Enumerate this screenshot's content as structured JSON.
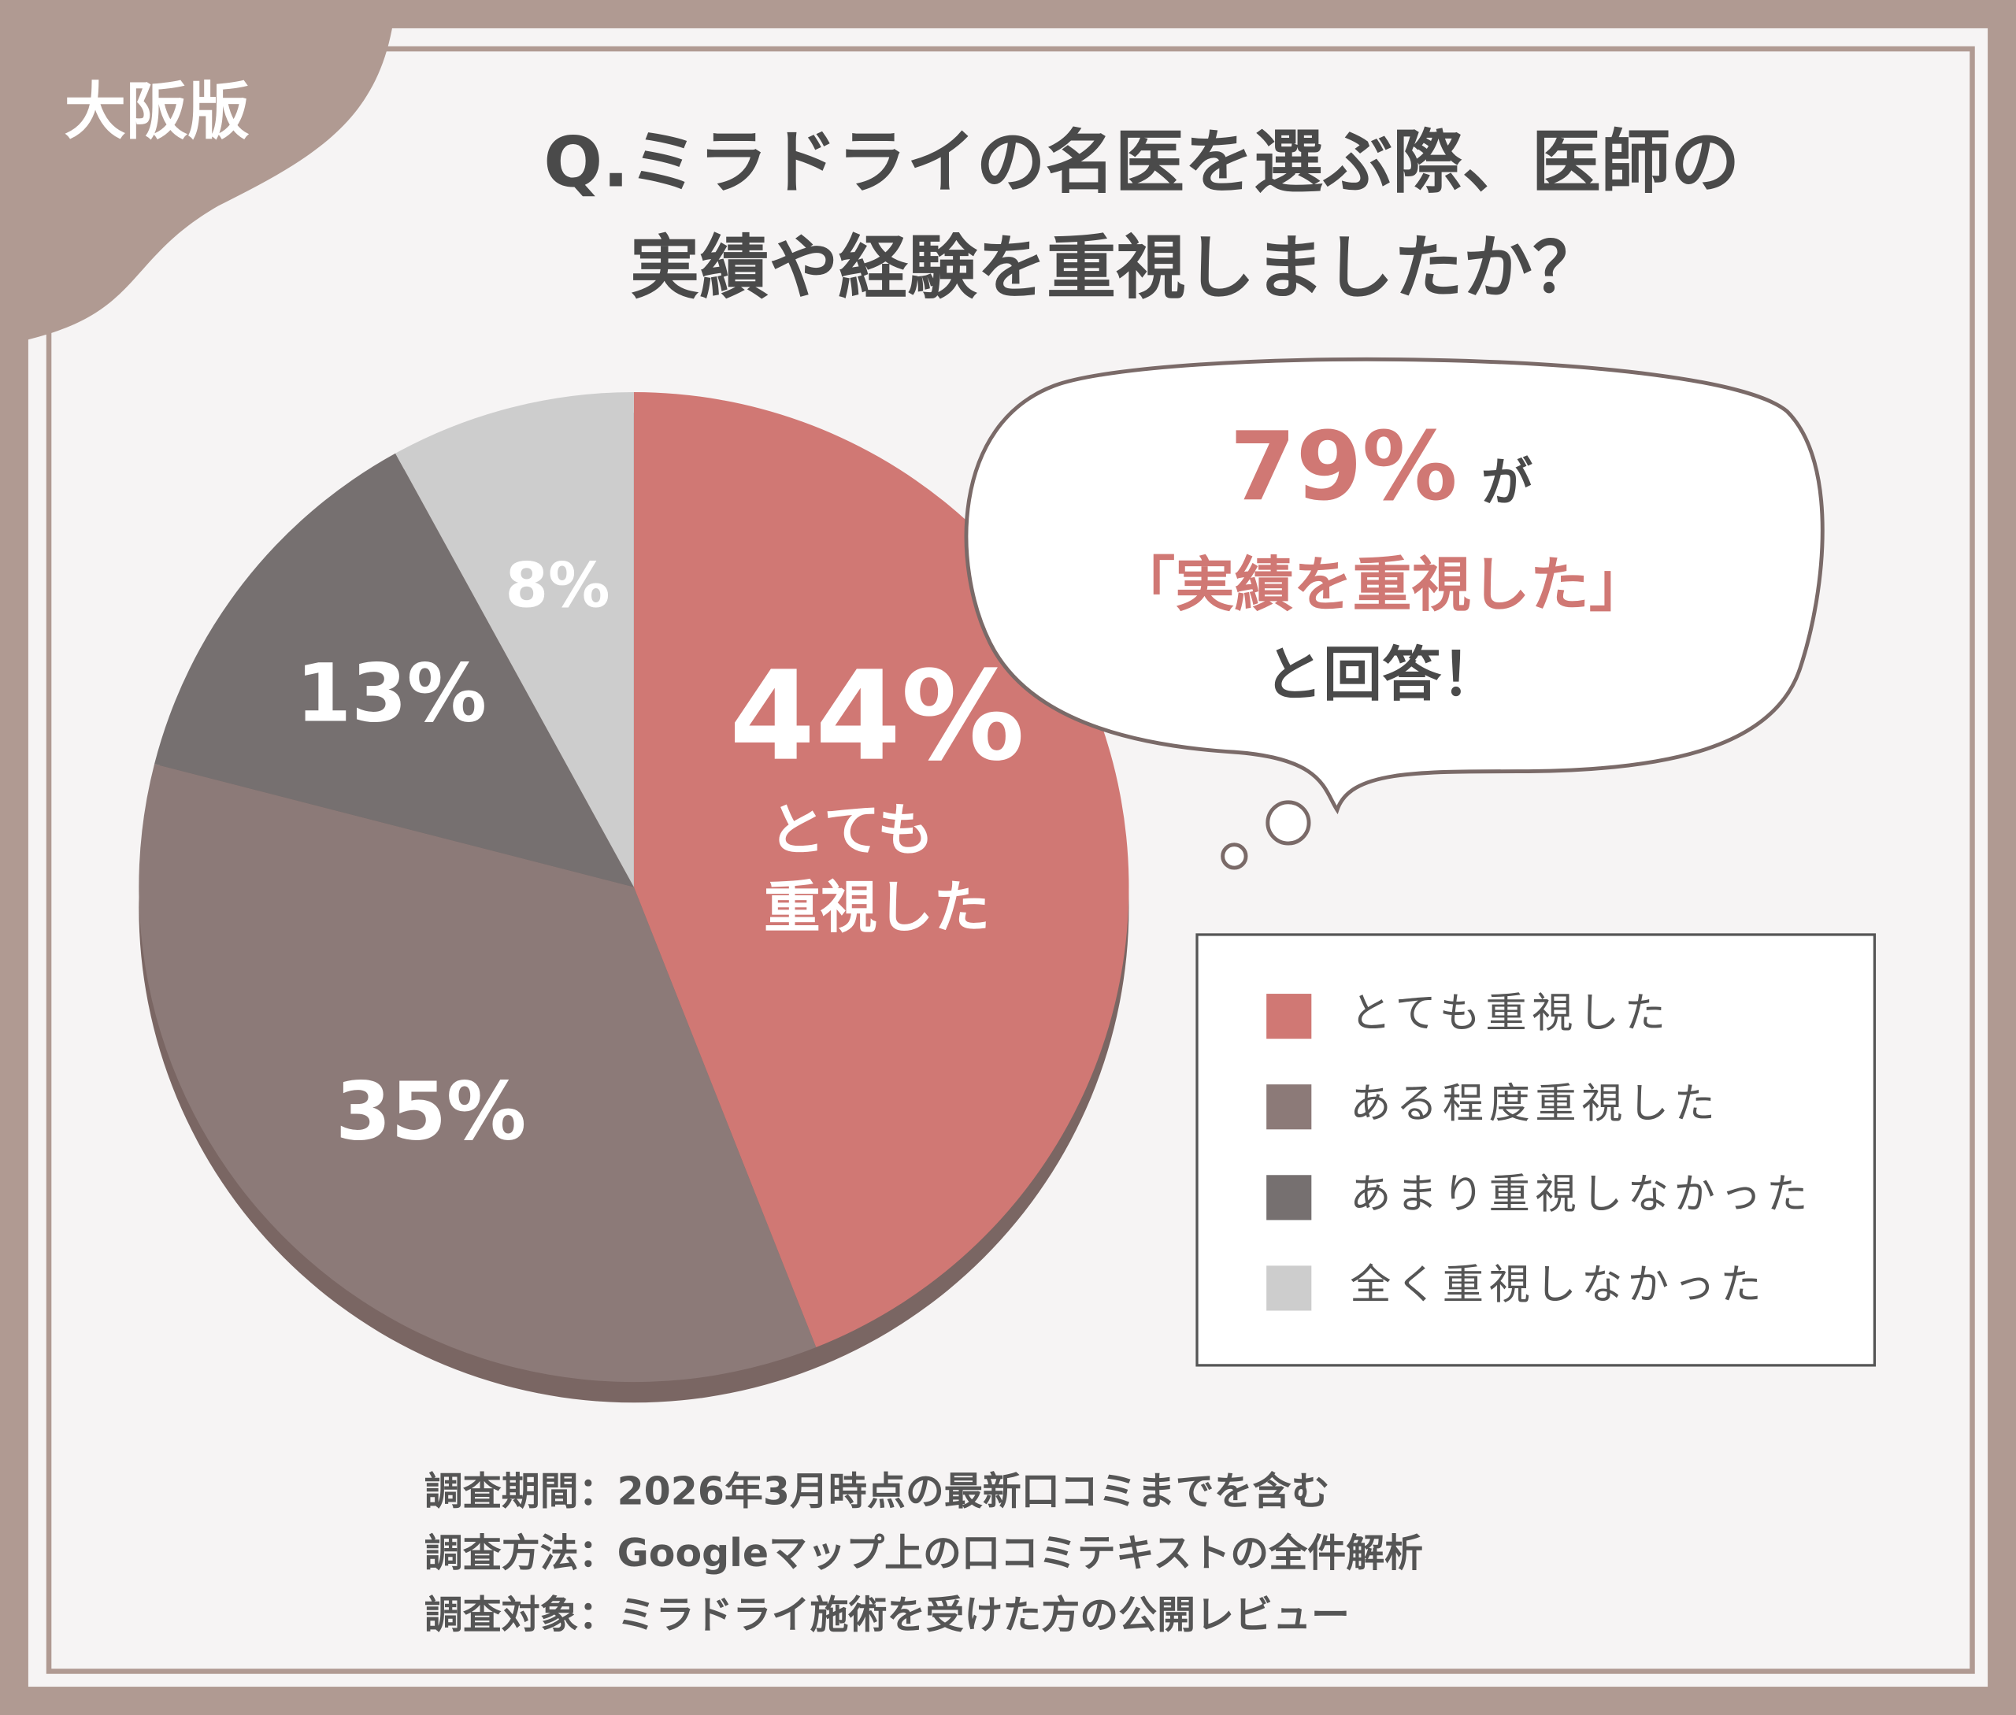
{
  "badge": "大阪版",
  "chart_data": {
    "type": "pie",
    "title": [
      "Q.ミラドライの名医を選ぶ際、医師の",
      "実績や経験を重視しましたか？"
    ],
    "categories": [
      "とても重視した",
      "ある程度重視した",
      "あまり重視しなかった",
      "全く重視しなかった"
    ],
    "values": [
      44,
      35,
      13,
      8
    ],
    "value_labels": [
      "44%",
      "35%",
      "13%",
      "8%"
    ],
    "colors": [
      "#d07874",
      "#8c7a78",
      "#767070",
      "#cdcdcd"
    ],
    "slice_annotation": [
      "とても",
      "重視した"
    ],
    "legend": "right"
  },
  "callout": {
    "percent": "79%",
    "suffix": "が",
    "quote": "「実績を重視した」",
    "end": "と回答！"
  },
  "footnotes": [
    "調査期間：2026年3月時点の最新口コミまでを含む",
    "調査方法：Googleマップ上の口コミテキストの全件解析",
    "調査対象：ミラドライ施術を受けた方の公開レビュー"
  ]
}
